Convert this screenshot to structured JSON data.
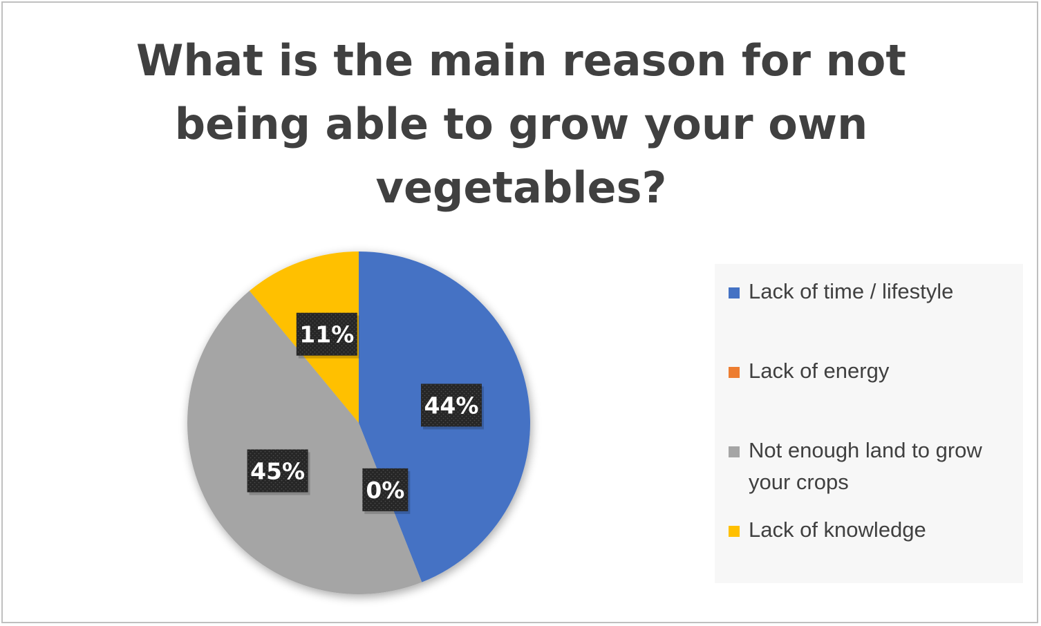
{
  "chart_data": {
    "type": "pie",
    "title_lines": [
      "What is the main reason for not",
      "being able to grow your own",
      "vegetables?"
    ],
    "slices": [
      {
        "label": "Lack of time / lifestyle",
        "value": 44,
        "data_label": "44%",
        "color": "#4472C4"
      },
      {
        "label": "Lack of energy",
        "value": 0,
        "data_label": "0%",
        "color": "#ED7D31"
      },
      {
        "label": "Not enough land to grow your crops",
        "value": 45,
        "data_label": "45%",
        "color": "#A5A5A5"
      },
      {
        "label": "Lack of knowledge",
        "value": 11,
        "data_label": "11%",
        "color": "#FFC000"
      }
    ],
    "start_angle": "12 o'clock",
    "direction": "clockwise",
    "legend_position": "right",
    "data_label_style": "dark boxes with white bold text"
  }
}
